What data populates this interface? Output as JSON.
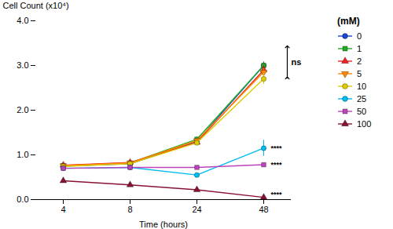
{
  "chart_data": {
    "type": "line",
    "xlabel": "Time (hours)",
    "ylabel": "Cell Count (x10⁴)",
    "categories": [
      "4",
      "8",
      "24",
      "48"
    ],
    "ylim": [
      0,
      4.0
    ],
    "yticks": [
      0,
      1,
      2,
      3,
      4
    ],
    "grid": false,
    "legend": "right",
    "legend_title": "(mM)",
    "series": [
      {
        "name": "0",
        "color": "#1848CC",
        "marker": "circle",
        "values": [
          0.75,
          0.8,
          1.3,
          3.0
        ],
        "errors": [
          0.03,
          0.03,
          0.05,
          0.08
        ]
      },
      {
        "name": "1",
        "color": "#22AA22",
        "marker": "square",
        "values": [
          0.76,
          0.82,
          1.35,
          3.0
        ],
        "errors": [
          0.03,
          0.03,
          0.05,
          0.06
        ]
      },
      {
        "name": "2",
        "color": "#EE2222",
        "marker": "triangle-up",
        "values": [
          0.77,
          0.83,
          1.28,
          2.9
        ],
        "errors": [
          0.03,
          0.03,
          0.05,
          0.1
        ]
      },
      {
        "name": "5",
        "color": "#FF8800",
        "marker": "triangle-down",
        "values": [
          0.76,
          0.82,
          1.32,
          2.85
        ],
        "errors": [
          0.03,
          0.03,
          0.05,
          0.08
        ]
      },
      {
        "name": "10",
        "color": "#DDCC00",
        "marker": "circle",
        "values": [
          0.74,
          0.8,
          1.27,
          2.7
        ],
        "errors": [
          0.03,
          0.03,
          0.05,
          0.12
        ]
      },
      {
        "name": "25",
        "color": "#00BBEE",
        "marker": "circle",
        "values": [
          0.7,
          0.72,
          0.55,
          1.15
        ],
        "errors": [
          0.03,
          0.03,
          0.04,
          0.18
        ]
      },
      {
        "name": "50",
        "color": "#BB44BB",
        "marker": "square",
        "values": [
          0.7,
          0.72,
          0.72,
          0.78
        ],
        "errors": [
          0.02,
          0.02,
          0.03,
          0.03
        ]
      },
      {
        "name": "100",
        "color": "#881133",
        "marker": "triangle-up",
        "values": [
          0.42,
          0.33,
          0.22,
          0.05
        ],
        "errors": [
          0.02,
          0.02,
          0.02,
          0.01
        ]
      }
    ],
    "annotations": [
      {
        "text": "ns",
        "x": "48",
        "y": [
          2.72,
          3.42
        ]
      },
      {
        "text": "****",
        "x": "48",
        "y": 1.15
      },
      {
        "text": "****",
        "x": "48",
        "y": 0.78
      },
      {
        "text": "****",
        "x": "48",
        "y": 0.12
      }
    ]
  }
}
